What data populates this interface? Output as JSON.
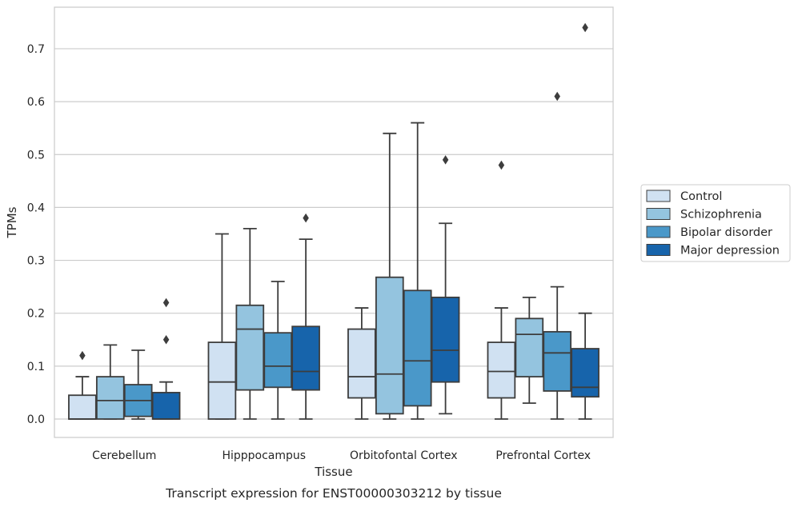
{
  "chart_data": {
    "type": "boxplot",
    "xlabel": "Tissue",
    "ylabel": "TPMs",
    "caption": "Transcript expression for ENST00000303212 by tissue",
    "ylim": [
      -0.035,
      0.78
    ],
    "yticks": [
      0.0,
      0.1,
      0.2,
      0.3,
      0.4,
      0.5,
      0.6,
      0.7
    ],
    "ytick_labels": [
      "0.0",
      "0.1",
      "0.2",
      "0.3",
      "0.4",
      "0.5",
      "0.6",
      "0.7"
    ],
    "grid": "horizontal",
    "legend_position": "right",
    "categories": [
      "Cerebellum",
      "Hipppocampus",
      "Orbitofontal Cortex",
      "Prefrontal Cortex"
    ],
    "series": [
      {
        "name": "Control",
        "color": "#d0e1f2",
        "boxes": [
          {
            "whisker_low": 0.0,
            "q1": 0.0,
            "median": 0.0,
            "q3": 0.045,
            "whisker_high": 0.08,
            "outliers": [
              0.12
            ]
          },
          {
            "whisker_low": 0.0,
            "q1": 0.0,
            "median": 0.07,
            "q3": 0.145,
            "whisker_high": 0.35,
            "outliers": []
          },
          {
            "whisker_low": 0.0,
            "q1": 0.04,
            "median": 0.08,
            "q3": 0.17,
            "whisker_high": 0.21,
            "outliers": []
          },
          {
            "whisker_low": 0.0,
            "q1": 0.04,
            "median": 0.09,
            "q3": 0.145,
            "whisker_high": 0.21,
            "outliers": [
              0.48
            ]
          }
        ]
      },
      {
        "name": "Schizophrenia",
        "color": "#94c4df",
        "boxes": [
          {
            "whisker_low": 0.0,
            "q1": 0.0,
            "median": 0.035,
            "q3": 0.08,
            "whisker_high": 0.14,
            "outliers": []
          },
          {
            "whisker_low": 0.0,
            "q1": 0.055,
            "median": 0.17,
            "q3": 0.215,
            "whisker_high": 0.36,
            "outliers": []
          },
          {
            "whisker_low": 0.0,
            "q1": 0.01,
            "median": 0.085,
            "q3": 0.268,
            "whisker_high": 0.54,
            "outliers": []
          },
          {
            "whisker_low": 0.03,
            "q1": 0.08,
            "median": 0.16,
            "q3": 0.19,
            "whisker_high": 0.23,
            "outliers": []
          }
        ]
      },
      {
        "name": "Bipolar disorder",
        "color": "#4a98c9",
        "boxes": [
          {
            "whisker_low": 0.0,
            "q1": 0.005,
            "median": 0.035,
            "q3": 0.065,
            "whisker_high": 0.13,
            "outliers": []
          },
          {
            "whisker_low": 0.0,
            "q1": 0.06,
            "median": 0.1,
            "q3": 0.163,
            "whisker_high": 0.26,
            "outliers": []
          },
          {
            "whisker_low": 0.0,
            "q1": 0.025,
            "median": 0.11,
            "q3": 0.243,
            "whisker_high": 0.56,
            "outliers": []
          },
          {
            "whisker_low": 0.0,
            "q1": 0.053,
            "median": 0.125,
            "q3": 0.165,
            "whisker_high": 0.25,
            "outliers": [
              0.61
            ]
          }
        ]
      },
      {
        "name": "Major depression",
        "color": "#1764ab",
        "boxes": [
          {
            "whisker_low": 0.0,
            "q1": 0.0,
            "median": 0.0,
            "q3": 0.05,
            "whisker_high": 0.07,
            "outliers": [
              0.15,
              0.22
            ]
          },
          {
            "whisker_low": 0.0,
            "q1": 0.055,
            "median": 0.09,
            "q3": 0.175,
            "whisker_high": 0.34,
            "outliers": [
              0.38
            ]
          },
          {
            "whisker_low": 0.01,
            "q1": 0.07,
            "median": 0.13,
            "q3": 0.23,
            "whisker_high": 0.37,
            "outliers": [
              0.49
            ]
          },
          {
            "whisker_low": 0.0,
            "q1": 0.042,
            "median": 0.06,
            "q3": 0.133,
            "whisker_high": 0.2,
            "outliers": [
              0.74
            ]
          }
        ]
      }
    ]
  }
}
